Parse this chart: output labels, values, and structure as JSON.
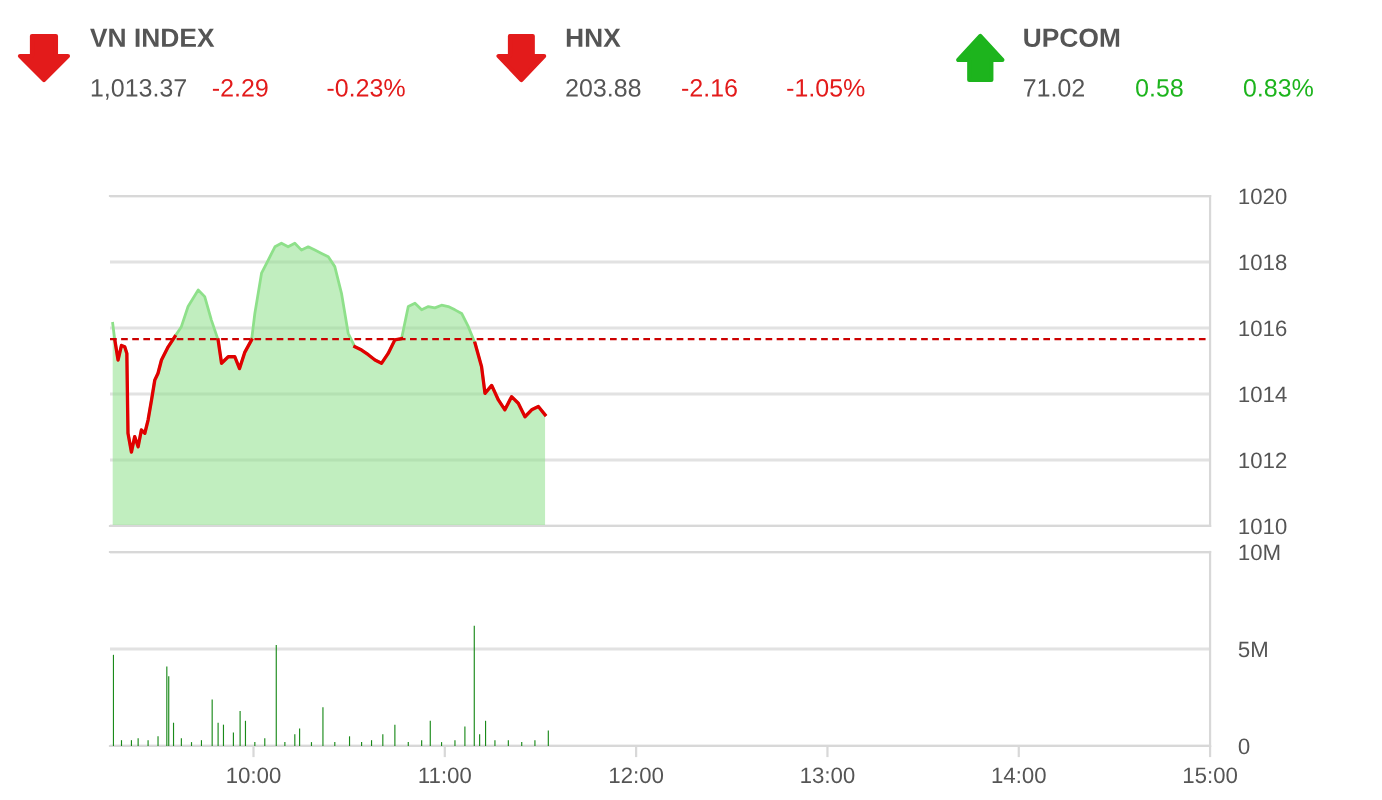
{
  "chart_data": [
    {
      "type": "other",
      "title": "VN INDEX",
      "annotations": [
        "1,013.37",
        "-2.29",
        "-0.23%"
      ],
      "color": "#e31b1b"
    },
    {
      "type": "other",
      "title": "HNX",
      "annotations": [
        "203.88",
        "-2.16",
        "-1.05%"
      ],
      "color": "#e31b1b"
    },
    {
      "type": "other",
      "title": "UPCOM",
      "annotations": [
        "71.02",
        "0.58",
        "0.83%"
      ],
      "color": "#1db41d"
    },
    {
      "type": "area",
      "x": [
        9.264,
        9.275,
        9.292,
        9.31,
        9.327,
        9.338,
        9.344,
        9.362,
        9.379,
        9.397,
        9.414,
        9.432,
        9.449,
        9.467,
        9.484,
        9.501,
        9.519,
        9.554,
        9.589,
        9.623,
        9.658,
        9.711,
        9.745,
        9.78,
        9.815,
        9.833,
        9.868,
        9.902,
        9.927,
        9.955,
        9.99,
        10.007,
        10.042,
        10.077,
        10.112,
        10.146,
        10.181,
        10.216,
        10.251,
        10.286,
        10.321,
        10.356,
        10.391,
        10.425,
        10.46,
        10.495,
        10.53,
        10.565,
        10.6,
        10.635,
        10.669,
        10.704,
        10.739,
        10.774,
        10.809,
        10.844,
        10.879,
        10.914,
        10.948,
        10.983,
        11.018,
        11.053,
        11.088,
        11.123,
        11.158,
        11.192,
        11.21,
        11.245,
        11.28,
        11.314,
        11.349,
        11.384,
        11.419,
        11.454,
        11.489,
        11.524
      ],
      "series": [
        {
          "color": "#8ee08a",
          "values": [
            1016.14,
            1015.64,
            1015.03,
            1015.47,
            1015.43,
            1015.23,
            1012.81,
            1012.24,
            1012.71,
            1012.4,
            1012.91,
            1012.81,
            1013.21,
            1013.82,
            1014.42,
            1014.63,
            1015.03,
            1015.43,
            1015.74,
            1016.04,
            1016.65,
            1017.15,
            1016.95,
            1016.24,
            1015.64,
            1014.93,
            1015.13,
            1015.13,
            1014.77,
            1015.27,
            1015.64,
            1016.44,
            1017.66,
            1018.06,
            1018.46,
            1018.57,
            1018.46,
            1018.57,
            1018.36,
            1018.46,
            1018.36,
            1018.26,
            1018.16,
            1017.86,
            1017.05,
            1015.84,
            1015.43,
            1015.33,
            1015.19,
            1015.03,
            1014.93,
            1015.23,
            1015.64,
            1015.68,
            1016.65,
            1016.75,
            1016.55,
            1016.65,
            1016.61,
            1016.69,
            1016.65,
            1016.55,
            1016.44,
            1016.04,
            1015.54,
            1014.83,
            1014.02,
            1014.26,
            1013.82,
            1013.52,
            1013.92,
            1013.72,
            1013.31,
            1013.52,
            1013.62,
            1013.37
          ]
        },
        {
          "type": "line",
          "color": "#e00000",
          "values": [
            null,
            1015.64,
            1015.03,
            1015.47,
            1015.43,
            1015.23,
            1012.81,
            1012.24,
            1012.71,
            1012.4,
            1012.91,
            1012.81,
            1013.21,
            1013.82,
            1014.42,
            1014.63,
            1015.03,
            1015.43,
            1015.74,
            null,
            null,
            null,
            null,
            null,
            1015.64,
            1014.93,
            1015.13,
            1015.13,
            1014.77,
            1015.27,
            1015.64,
            null,
            null,
            null,
            null,
            null,
            null,
            null,
            null,
            null,
            null,
            null,
            null,
            null,
            null,
            null,
            1015.43,
            1015.33,
            1015.19,
            1015.03,
            1014.93,
            1015.23,
            1015.64,
            1015.68,
            null,
            null,
            null,
            null,
            null,
            null,
            null,
            null,
            null,
            null,
            1015.54,
            1014.83,
            1014.02,
            1014.26,
            1013.82,
            1013.52,
            1013.92,
            1013.72,
            1013.31,
            1013.52,
            1013.62,
            1013.37
          ]
        }
      ],
      "xlim": [
        9.25,
        15
      ],
      "ylim": [
        1010,
        1020
      ],
      "yticks": [
        1010,
        1012,
        1014,
        1016,
        1018,
        1020
      ],
      "grid": "y",
      "tick_labels": "y",
      "ref_lines": [
        {
          "axis": "y",
          "value": 1015.66,
          "color": "#cc0000",
          "line_style": "dashed"
        }
      ]
    },
    {
      "type": "bar",
      "x": [
        9.268,
        9.31,
        9.362,
        9.397,
        9.449,
        9.501,
        9.547,
        9.557,
        9.582,
        9.623,
        9.676,
        9.728,
        9.784,
        9.815,
        9.843,
        9.895,
        9.93,
        9.958,
        10.007,
        10.059,
        10.119,
        10.164,
        10.216,
        10.241,
        10.303,
        10.363,
        10.425,
        10.502,
        10.565,
        10.617,
        10.676,
        10.739,
        10.809,
        10.879,
        10.924,
        10.983,
        11.053,
        11.105,
        11.154,
        11.182,
        11.213,
        11.262,
        11.332,
        11.402,
        11.471,
        11.541
      ],
      "series": [
        {
          "color": "#1a8a1a",
          "values": [
            4700000,
            300000,
            300000,
            400000,
            300000,
            500000,
            4100000,
            3600000,
            1200000,
            400000,
            200000,
            300000,
            2400000,
            1200000,
            1100000,
            700000,
            1800000,
            1300000,
            200000,
            400000,
            5200000,
            200000,
            600000,
            900000,
            200000,
            2000000,
            200000,
            500000,
            200000,
            300000,
            600000,
            1100000,
            200000,
            300000,
            1300000,
            200000,
            300000,
            1000000,
            6200000,
            600000,
            1300000,
            300000,
            300000,
            200000,
            300000,
            800000
          ]
        }
      ],
      "xlim": [
        9.25,
        15
      ],
      "xticks": [
        {
          "value": 10,
          "label": "10:00"
        },
        {
          "value": 11,
          "label": "11:00"
        },
        {
          "value": 12,
          "label": "12:00"
        },
        {
          "value": 13,
          "label": "13:00"
        },
        {
          "value": 14,
          "label": "14:00"
        },
        {
          "value": 15,
          "label": "15:00"
        }
      ],
      "ylim": [
        0,
        10000000
      ],
      "yticks": [
        {
          "value": 0,
          "label": "0"
        },
        {
          "value": 5000000,
          "label": "5M"
        },
        {
          "value": 10000000,
          "label": "10M"
        }
      ],
      "grid": "y"
    }
  ]
}
